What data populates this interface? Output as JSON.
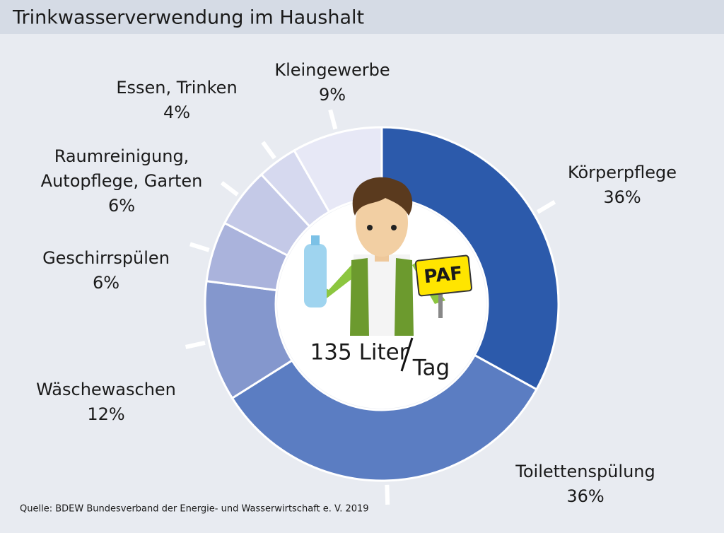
{
  "chart_data": {
    "type": "donut",
    "title": "Trinkwasserverwendung im Haushalt",
    "categories": [
      [
        "Körperpflege"
      ],
      [
        "Toilettenspülung"
      ],
      [
        "Wäschewaschen"
      ],
      [
        "Geschirrspülen"
      ],
      [
        "Raumreinigung,",
        "Autopflege, Garten"
      ],
      [
        "Essen, Trinken"
      ],
      [
        "Kleingewerbe"
      ]
    ],
    "values": [
      36,
      36,
      12,
      6,
      6,
      4,
      9
    ],
    "value_labels": [
      "36%",
      "36%",
      "12%",
      "6%",
      "6%",
      "4%",
      "9%"
    ],
    "colors": [
      "#2c5aab",
      "#5b7dc2",
      "#8497cd",
      "#aab3dc",
      "#c4c9e7",
      "#d6d9ef",
      "#e7e8f6"
    ],
    "center_label": {
      "amount": "135 Liter",
      "unit": "Tag"
    },
    "sign_text": "PAF",
    "source": "Quelle: BDEW Bundesverband der Energie- und Wasserwirtschaft e. V. 2019"
  }
}
